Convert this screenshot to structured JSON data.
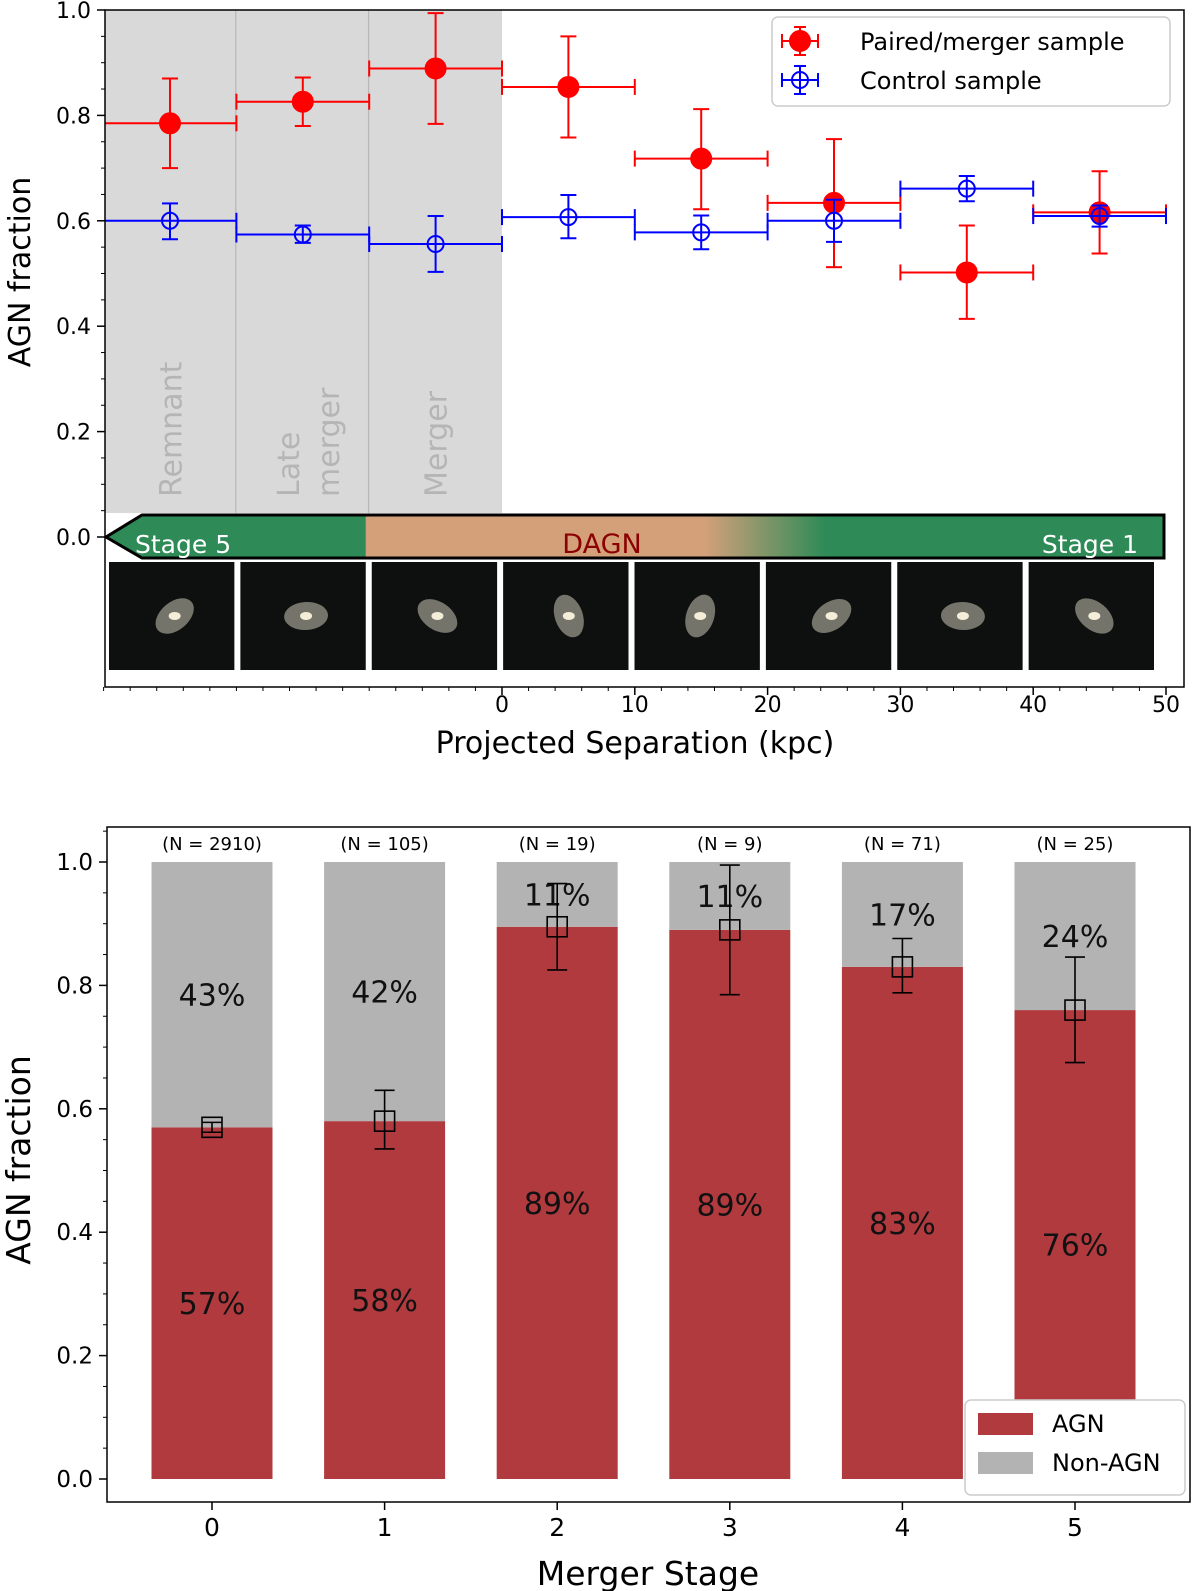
{
  "chart_data": [
    {
      "type": "scatter",
      "xlabel": "Projected Separation (kpc)",
      "ylabel": "AGN fraction",
      "xlim": [
        -30,
        50
      ],
      "ylim": [
        0,
        1
      ],
      "x_ticks": [
        "0",
        "10",
        "20",
        "30",
        "40",
        "50"
      ],
      "y_ticks": [
        "0.0",
        "0.2",
        "0.4",
        "0.6",
        "0.8",
        "1.0"
      ],
      "legend": {
        "placement": "top-right"
      },
      "shaded_regions": [
        {
          "x0": -30,
          "x1": -20,
          "label": "Remnant"
        },
        {
          "x0": -20,
          "x1": -10,
          "label": "Late merger"
        },
        {
          "x0": -10,
          "x1": 0,
          "label": "Merger"
        }
      ],
      "series": [
        {
          "name": "Paired/merger sample",
          "color": "#ff0000",
          "marker": "filled-circle",
          "points": [
            {
              "x": -25,
              "y": 0.785,
              "xerr": 5,
              "yerr_low": 0.085,
              "yerr_high": 0.085
            },
            {
              "x": -15,
              "y": 0.826,
              "xerr": 5,
              "yerr_low": 0.046,
              "yerr_high": 0.046
            },
            {
              "x": -5,
              "y": 0.889,
              "xerr": 5,
              "yerr_low": 0.105,
              "yerr_high": 0.105
            },
            {
              "x": 5,
              "y": 0.854,
              "xerr": 5,
              "yerr_low": 0.096,
              "yerr_high": 0.096
            },
            {
              "x": 15,
              "y": 0.718,
              "xerr": 5,
              "yerr_low": 0.096,
              "yerr_high": 0.094
            },
            {
              "x": 25,
              "y": 0.634,
              "xerr": 5,
              "yerr_low": 0.122,
              "yerr_high": 0.121
            },
            {
              "x": 35,
              "y": 0.502,
              "xerr": 5,
              "yerr_low": 0.088,
              "yerr_high": 0.089
            },
            {
              "x": 45,
              "y": 0.616,
              "xerr": 5,
              "yerr_low": 0.078,
              "yerr_high": 0.078
            }
          ]
        },
        {
          "name": "Control sample",
          "color": "#0000ff",
          "marker": "open-circle",
          "points": [
            {
              "x": -25,
              "y": 0.6,
              "xerr": 5,
              "yerr_low": 0.035,
              "yerr_high": 0.033
            },
            {
              "x": -15,
              "y": 0.574,
              "xerr": 5,
              "yerr_low": 0.016,
              "yerr_high": 0.017
            },
            {
              "x": -5,
              "y": 0.556,
              "xerr": 5,
              "yerr_low": 0.053,
              "yerr_high": 0.053
            },
            {
              "x": 5,
              "y": 0.607,
              "xerr": 5,
              "yerr_low": 0.04,
              "yerr_high": 0.042
            },
            {
              "x": 15,
              "y": 0.578,
              "xerr": 5,
              "yerr_low": 0.032,
              "yerr_high": 0.032
            },
            {
              "x": 25,
              "y": 0.6,
              "xerr": 5,
              "yerr_low": 0.04,
              "yerr_high": 0.04
            },
            {
              "x": 35,
              "y": 0.661,
              "xerr": 5,
              "yerr_low": 0.024,
              "yerr_high": 0.024
            },
            {
              "x": 45,
              "y": 0.609,
              "xerr": 5,
              "yerr_low": 0.02,
              "yerr_high": 0.02
            }
          ]
        }
      ],
      "stage_arrow": {
        "left_label": "Stage 5",
        "middle_label": "DAGN",
        "right_label": "Stage 1",
        "colors": {
          "green": "#2e8b57",
          "tan": "#d4a07a",
          "dagn_text": "#8b0000"
        }
      },
      "galaxy_thumbnails": 8
    },
    {
      "type": "bar",
      "stacked": true,
      "xlabel": "Merger Stage",
      "ylabel": "AGN fraction",
      "ylim": [
        0,
        1.08
      ],
      "y_ticks": [
        "0.0",
        "0.2",
        "0.4",
        "0.6",
        "0.8",
        "1.0"
      ],
      "categories": [
        "0",
        "1",
        "2",
        "3",
        "4",
        "5"
      ],
      "counts": [
        "(N = 2910)",
        "(N = 105)",
        "(N = 19)",
        "(N = 9)",
        "(N = 71)",
        "(N = 25)"
      ],
      "series": [
        {
          "name": "AGN",
          "color": "#b03a3e",
          "values": [
            0.57,
            0.58,
            0.895,
            0.89,
            0.83,
            0.76
          ],
          "labels": [
            "57%",
            "58%",
            "89%",
            "89%",
            "83%",
            "76%"
          ]
        },
        {
          "name": "Non-AGN",
          "color": "#b3b3b3",
          "values": [
            0.43,
            0.42,
            0.105,
            0.11,
            0.17,
            0.24
          ],
          "labels": [
            "43%",
            "42%",
            "11%",
            "11%",
            "17%",
            "24%"
          ]
        }
      ],
      "error_markers": [
        {
          "y": 0.57,
          "low": 0.562,
          "high": 0.578
        },
        {
          "y": 0.58,
          "low": 0.535,
          "high": 0.63
        },
        {
          "y": 0.895,
          "low": 0.825,
          "high": 0.965
        },
        {
          "y": 0.89,
          "low": 0.785,
          "high": 0.995
        },
        {
          "y": 0.83,
          "low": 0.788,
          "high": 0.876
        },
        {
          "y": 0.76,
          "low": 0.675,
          "high": 0.846
        }
      ],
      "legend": {
        "placement": "bottom-right"
      }
    }
  ]
}
